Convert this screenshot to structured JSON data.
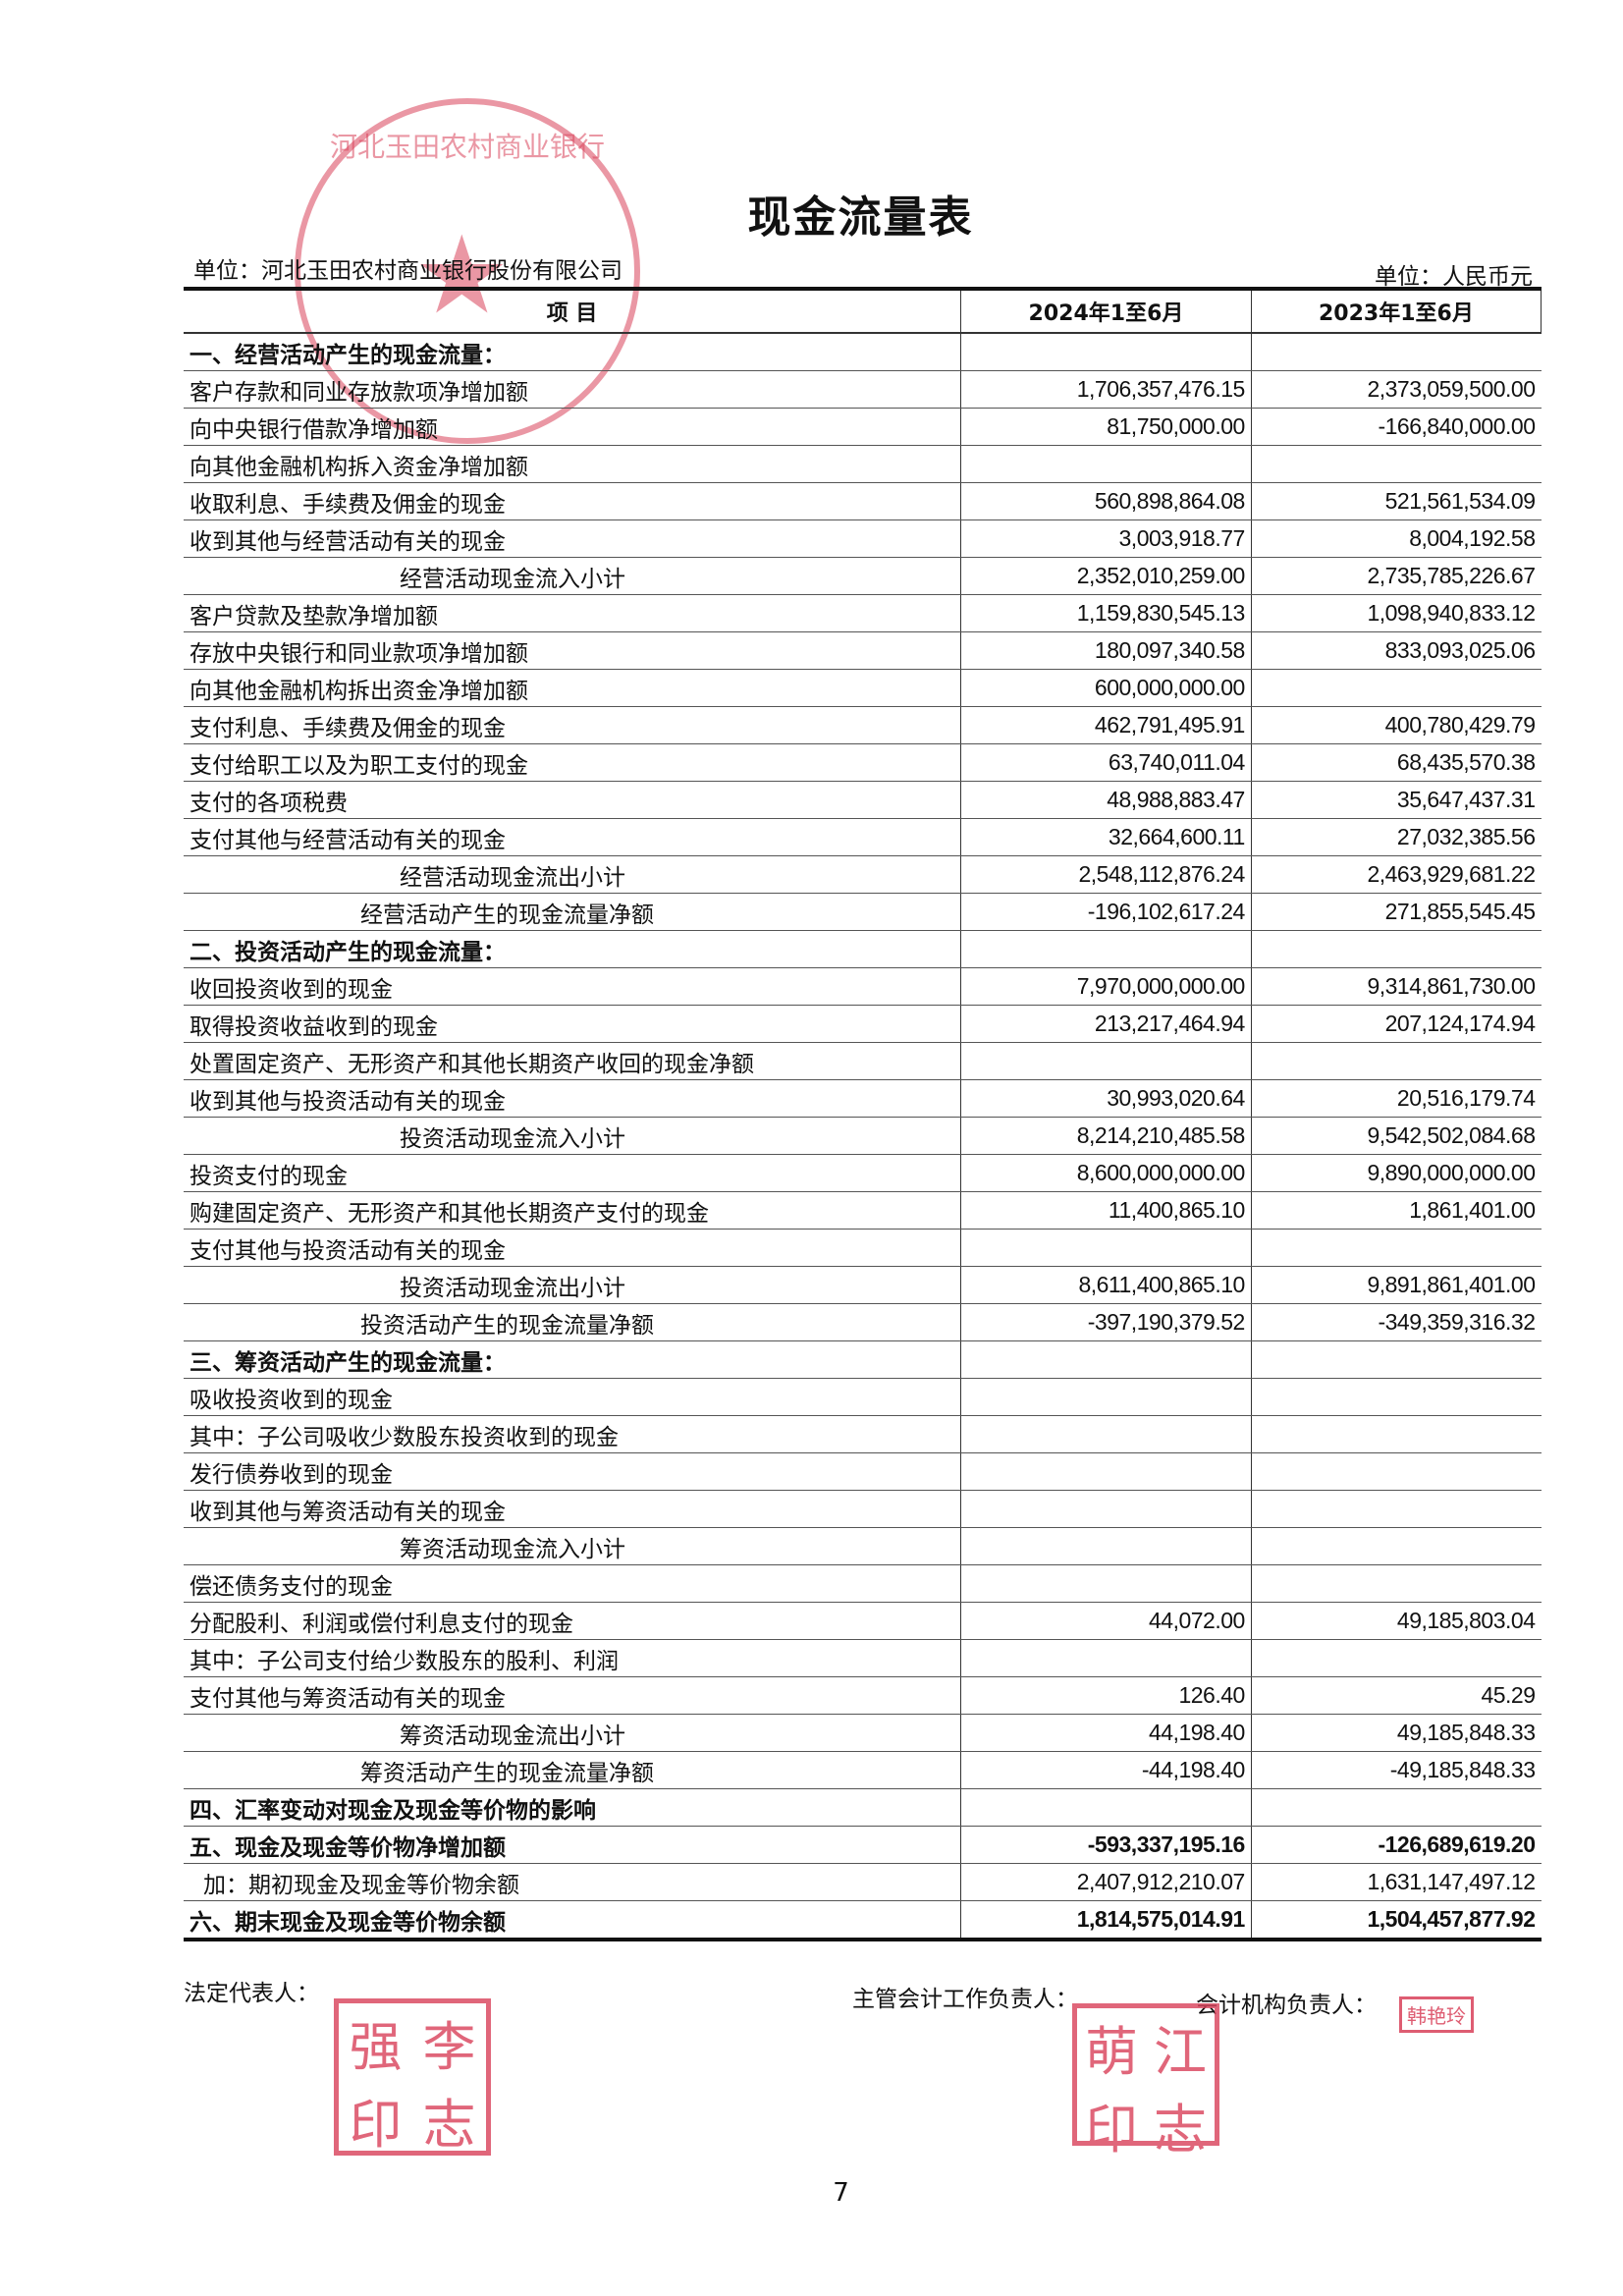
{
  "title": "现金流量表",
  "unit_left": "单位：河北玉田农村商业银行股份有限公司",
  "unit_right": "单位：人民币元",
  "columns": [
    "项  目",
    "2024年1至6月",
    "2023年1至6月"
  ],
  "rows": [
    {
      "label": "一、经营活动产生的现金流量：",
      "v2024": "",
      "v2023": "",
      "style": "bold"
    },
    {
      "label": "客户存款和同业存放款项净增加额",
      "v2024": "1,706,357,476.15",
      "v2023": "2,373,059,500.00",
      "style": ""
    },
    {
      "label": "向中央银行借款净增加额",
      "v2024": "81,750,000.00",
      "v2023": "-166,840,000.00",
      "style": ""
    },
    {
      "label": "向其他金融机构拆入资金净增加额",
      "v2024": "",
      "v2023": "",
      "style": ""
    },
    {
      "label": "收取利息、手续费及佣金的现金",
      "v2024": "560,898,864.08",
      "v2023": "521,561,534.09",
      "style": ""
    },
    {
      "label": "收到其他与经营活动有关的现金",
      "v2024": "3,003,918.77",
      "v2023": "8,004,192.58",
      "style": ""
    },
    {
      "label": "经营活动现金流入小计",
      "v2024": "2,352,010,259.00",
      "v2023": "2,735,785,226.67",
      "style": "sub"
    },
    {
      "label": "客户贷款及垫款净增加额",
      "v2024": "1,159,830,545.13",
      "v2023": "1,098,940,833.12",
      "style": ""
    },
    {
      "label": "存放中央银行和同业款项净增加额",
      "v2024": "180,097,340.58",
      "v2023": "833,093,025.06",
      "style": ""
    },
    {
      "label": "向其他金融机构拆出资金净增加额",
      "v2024": "600,000,000.00",
      "v2023": "",
      "style": ""
    },
    {
      "label": "支付利息、手续费及佣金的现金",
      "v2024": "462,791,495.91",
      "v2023": "400,780,429.79",
      "style": ""
    },
    {
      "label": "支付给职工以及为职工支付的现金",
      "v2024": "63,740,011.04",
      "v2023": "68,435,570.38",
      "style": ""
    },
    {
      "label": "支付的各项税费",
      "v2024": "48,988,883.47",
      "v2023": "35,647,437.31",
      "style": ""
    },
    {
      "label": "支付其他与经营活动有关的现金",
      "v2024": "32,664,600.11",
      "v2023": "27,032,385.56",
      "style": ""
    },
    {
      "label": "经营活动现金流出小计",
      "v2024": "2,548,112,876.24",
      "v2023": "2,463,929,681.22",
      "style": "sub"
    },
    {
      "label": "经营活动产生的现金流量净额",
      "v2024": "-196,102,617.24",
      "v2023": "271,855,545.45",
      "style": "net"
    },
    {
      "label": "二、投资活动产生的现金流量：",
      "v2024": "",
      "v2023": "",
      "style": "bold"
    },
    {
      "label": "收回投资收到的现金",
      "v2024": "7,970,000,000.00",
      "v2023": "9,314,861,730.00",
      "style": ""
    },
    {
      "label": "取得投资收益收到的现金",
      "v2024": "213,217,464.94",
      "v2023": "207,124,174.94",
      "style": ""
    },
    {
      "label": "处置固定资产、无形资产和其他长期资产收回的现金净额",
      "v2024": "",
      "v2023": "",
      "style": ""
    },
    {
      "label": "收到其他与投资活动有关的现金",
      "v2024": "30,993,020.64",
      "v2023": "20,516,179.74",
      "style": ""
    },
    {
      "label": "投资活动现金流入小计",
      "v2024": "8,214,210,485.58",
      "v2023": "9,542,502,084.68",
      "style": "sub"
    },
    {
      "label": "投资支付的现金",
      "v2024": "8,600,000,000.00",
      "v2023": "9,890,000,000.00",
      "style": ""
    },
    {
      "label": "购建固定资产、无形资产和其他长期资产支付的现金",
      "v2024": "11,400,865.10",
      "v2023": "1,861,401.00",
      "style": ""
    },
    {
      "label": "支付其他与投资活动有关的现金",
      "v2024": "",
      "v2023": "",
      "style": ""
    },
    {
      "label": "投资活动现金流出小计",
      "v2024": "8,611,400,865.10",
      "v2023": "9,891,861,401.00",
      "style": "sub"
    },
    {
      "label": "投资活动产生的现金流量净额",
      "v2024": "-397,190,379.52",
      "v2023": "-349,359,316.32",
      "style": "net"
    },
    {
      "label": "三、筹资活动产生的现金流量：",
      "v2024": "",
      "v2023": "",
      "style": "bold"
    },
    {
      "label": "吸收投资收到的现金",
      "v2024": "",
      "v2023": "",
      "style": ""
    },
    {
      "label": "其中：子公司吸收少数股东投资收到的现金",
      "v2024": "",
      "v2023": "",
      "style": ""
    },
    {
      "label": "发行债券收到的现金",
      "v2024": "",
      "v2023": "",
      "style": ""
    },
    {
      "label": "收到其他与筹资活动有关的现金",
      "v2024": "",
      "v2023": "",
      "style": ""
    },
    {
      "label": "筹资活动现金流入小计",
      "v2024": "",
      "v2023": "",
      "style": "sub"
    },
    {
      "label": "偿还债务支付的现金",
      "v2024": "",
      "v2023": "",
      "style": ""
    },
    {
      "label": "分配股利、利润或偿付利息支付的现金",
      "v2024": "44,072.00",
      "v2023": "49,185,803.04",
      "style": ""
    },
    {
      "label": "其中：子公司支付给少数股东的股利、利润",
      "v2024": "",
      "v2023": "",
      "style": ""
    },
    {
      "label": "支付其他与筹资活动有关的现金",
      "v2024": "126.40",
      "v2023": "45.29",
      "style": ""
    },
    {
      "label": "筹资活动现金流出小计",
      "v2024": "44,198.40",
      "v2023": "49,185,848.33",
      "style": "sub"
    },
    {
      "label": "筹资活动产生的现金流量净额",
      "v2024": "-44,198.40",
      "v2023": "-49,185,848.33",
      "style": "net"
    },
    {
      "label": "四、汇率变动对现金及现金等价物的影响",
      "v2024": "",
      "v2023": "",
      "style": "bold"
    },
    {
      "label": "五、现金及现金等价物净增加额",
      "v2024": "-593,337,195.16",
      "v2023": "-126,689,619.20",
      "style": "bold"
    },
    {
      "label": "加：期初现金及现金等价物余额",
      "v2024": "2,407,912,210.07",
      "v2023": "1,631,147,497.12",
      "style": "indent"
    },
    {
      "label": "六、期末现金及现金等价物余额",
      "v2024": "1,814,575,014.91",
      "v2023": "1,504,457,877.92",
      "style": "bold"
    }
  ],
  "signatures": {
    "legal_rep": "法定代表人：",
    "chief_accountant": "主管会计工作负责人：",
    "accounting_head": "会计机构负责人："
  },
  "seals": {
    "company": "河北玉田农村商业银行股份有限公司",
    "legal_rep": [
      "李",
      "志",
      "强",
      "印"
    ],
    "chief_accountant": [
      "江",
      "志",
      "萌",
      "印"
    ],
    "accounting_head": "韩艳玲",
    "color": "#d9415a"
  },
  "page_number": "7"
}
